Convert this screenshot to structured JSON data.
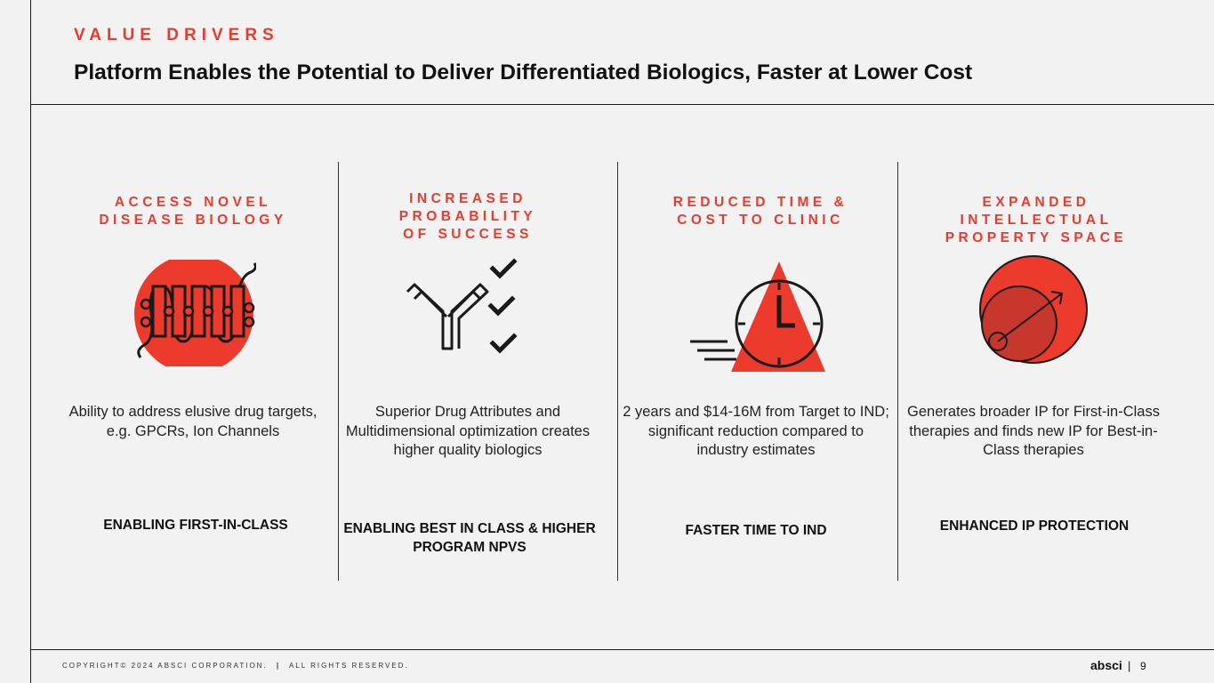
{
  "header": {
    "eyebrow": "VALUE DRIVERS",
    "title": "Platform Enables the Potential to Deliver Differentiated Biologics, Faster at Lower Cost"
  },
  "columns": [
    {
      "heading": "ACCESS NOVEL\nDISEASE BIOLOGY",
      "icon": "membrane-protein-icon",
      "description": "Ability to address elusive drug targets, e.g. GPCRs, Ion Channels",
      "tagline": "ENABLING FIRST-IN-CLASS"
    },
    {
      "heading": "INCREASED\nPROBABILITY\nOF SUCCESS",
      "icon": "antibody-checkmarks-icon",
      "description": "Superior Drug Attributes and Multidimensional optimization creates higher quality biologics",
      "tagline": "ENABLING BEST IN CLASS & HIGHER PROGRAM NPVS"
    },
    {
      "heading": "REDUCED TIME &\nCOST TO CLINIC",
      "icon": "fast-clock-icon",
      "description": "2 years and $14-16M from Target to IND; significant reduction compared to industry estimates",
      "tagline": "FASTER TIME TO IND"
    },
    {
      "heading": "EXPANDED\nINTELLECTUAL\nPROPERTY SPACE",
      "icon": "expanding-circle-icon",
      "description": "Generates broader IP for First-in-Class therapies and finds new IP for Best-in-Class therapies",
      "tagline": "ENHANCED IP PROTECTION"
    }
  ],
  "footer": {
    "copyright": "COPYRIGHT© 2024 ABSCI CORPORATION.",
    "separator": "|",
    "rights": "ALL RIGHTS RESERVED.",
    "brand": "absci",
    "page_separator": "|",
    "page_number": "9"
  },
  "colors": {
    "accent": "#ec3a2d",
    "background": "#f2f2f2",
    "text": "#1a1a1a"
  }
}
